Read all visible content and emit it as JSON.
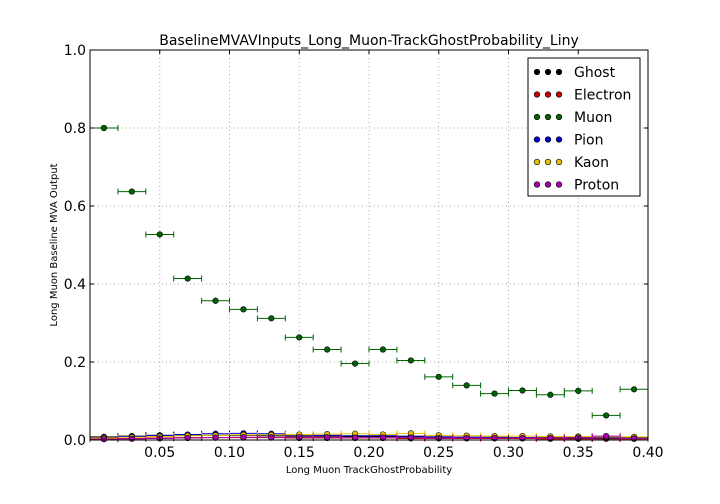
{
  "chart_data": {
    "type": "scatter",
    "title": "BaselineMVAVInputs_Long_Muon-TrackGhostProbability_Liny",
    "xlabel": "Long Muon TrackGhostProbability",
    "ylabel": "Long Muon Baseline MVA Output",
    "xlim": [
      0.0,
      0.4
    ],
    "ylim": [
      0.0,
      1.0
    ],
    "xticks": [
      "0.05",
      "0.10",
      "0.15",
      "0.20",
      "0.25",
      "0.30",
      "0.35",
      "0.40"
    ],
    "yticks": [
      "0.0",
      "0.2",
      "0.4",
      "0.6",
      "0.8",
      "1.0"
    ],
    "grid": true,
    "legend_position": "top-right",
    "bin_half_width": 0.01,
    "x": [
      0.01,
      0.03,
      0.05,
      0.07,
      0.09,
      0.11,
      0.13,
      0.15,
      0.17,
      0.19,
      0.21,
      0.23,
      0.25,
      0.27,
      0.29,
      0.31,
      0.33,
      0.35,
      0.37,
      0.39
    ],
    "series": [
      {
        "name": "Ghost",
        "color": "#000000",
        "values": [
          0.008,
          0.01,
          0.012,
          0.013,
          0.012,
          0.012,
          0.011,
          0.01,
          0.01,
          0.009,
          0.009,
          0.008,
          0.008,
          0.007,
          0.007,
          0.006,
          0.006,
          0.006,
          0.006,
          0.005
        ]
      },
      {
        "name": "Electron",
        "color": "#cc0000",
        "values": [
          0.003,
          0.004,
          0.005,
          0.006,
          0.006,
          0.006,
          0.006,
          0.005,
          0.005,
          0.005,
          0.005,
          0.004,
          0.004,
          0.004,
          0.004,
          0.004,
          0.003,
          0.003,
          0.003,
          0.003
        ]
      },
      {
        "name": "Muon",
        "color": "#006400",
        "values": [
          0.8,
          0.637,
          0.527,
          0.414,
          0.357,
          0.335,
          0.312,
          0.263,
          0.232,
          0.196,
          0.232,
          0.204,
          0.162,
          0.14,
          0.119,
          0.127,
          0.116,
          0.126,
          0.063,
          0.13
        ]
      },
      {
        "name": "Pion",
        "color": "#0000cc",
        "values": [
          0.006,
          0.009,
          0.012,
          0.014,
          0.016,
          0.017,
          0.016,
          0.013,
          0.012,
          0.011,
          0.011,
          0.01,
          0.008,
          0.007,
          0.006,
          0.006,
          0.005,
          0.005,
          0.005,
          0.004
        ]
      },
      {
        "name": "Kaon",
        "color": "#e6c200",
        "values": [
          0.005,
          0.007,
          0.009,
          0.011,
          0.012,
          0.013,
          0.013,
          0.014,
          0.015,
          0.016,
          0.014,
          0.017,
          0.012,
          0.011,
          0.01,
          0.01,
          0.009,
          0.009,
          0.008,
          0.008
        ]
      },
      {
        "name": "Proton",
        "color": "#aa00aa",
        "values": [
          0.002,
          0.003,
          0.004,
          0.005,
          0.006,
          0.007,
          0.007,
          0.007,
          0.007,
          0.006,
          0.006,
          0.006,
          0.005,
          0.005,
          0.005,
          0.005,
          0.005,
          0.006,
          0.01,
          0.004
        ]
      }
    ]
  }
}
